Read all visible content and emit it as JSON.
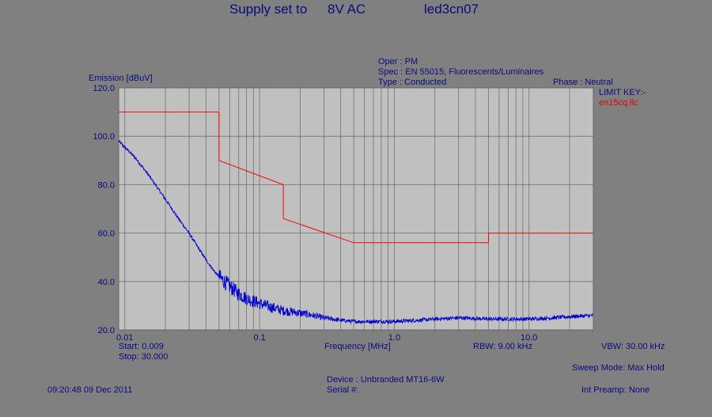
{
  "header": {
    "title": "Supply set to",
    "supply_value": "8V AC",
    "file_id": "led3cn07"
  },
  "info": {
    "oper": "Oper : PM",
    "spec": "Spec : EN 55015, Fluorescents/Luminaires",
    "type": "Type : Conducted",
    "phase": "Phase : Neutral"
  },
  "limit_key": {
    "label": "LIMIT KEY:-",
    "name": "en15cq.llc"
  },
  "footer": {
    "start": "Start: 0.009",
    "stop": "Stop: 30.000",
    "rbw": "RBW: 9.00 kHz",
    "vbw": "VBW: 30.00 kHz",
    "sweep_mode": "Sweep Mode: Max Hold",
    "device": "Device : Unbranded MT16-6W",
    "serial": "Serial #:",
    "timestamp": "09:20:48 09 Dec 2011",
    "int_preamp": "Int Preamp: None"
  },
  "colors": {
    "background": "#808080",
    "plot_area": "#c0c0c0",
    "grid": "#707070",
    "limit_line": "#ff0000",
    "emission_trace": "#0000cc",
    "header_text": "#0a0a80"
  },
  "chart_data": {
    "type": "line",
    "ylabel": "Emission [dBuV]",
    "xlabel": "Frequency [MHz]",
    "x_scale": "log",
    "xlim": [
      0.009,
      30
    ],
    "ylim": [
      20,
      120
    ],
    "grid": true,
    "x_tick_labels": [
      "0.01",
      "0.1",
      "1.0",
      "10.0"
    ],
    "x_ticks": [
      0.01,
      0.1,
      1.0,
      10.0
    ],
    "y_tick_labels": [
      "20.0",
      "40.0",
      "60.0",
      "80.0",
      "100.0",
      "120.0"
    ],
    "y_ticks": [
      20,
      40,
      60,
      80,
      100,
      120
    ],
    "series": [
      {
        "name": "en15cq.llc",
        "color": "#ff0000",
        "x": [
          0.009,
          0.05,
          0.05,
          0.15,
          0.15,
          0.5,
          5.0,
          5.0,
          30.0
        ],
        "y": [
          110,
          110,
          90,
          80,
          66,
          56,
          56,
          60,
          60
        ]
      },
      {
        "color": "#0000cc",
        "noisy": true,
        "x": [
          0.009,
          0.012,
          0.015,
          0.02,
          0.025,
          0.03,
          0.035,
          0.04,
          0.045,
          0.05,
          0.06,
          0.07,
          0.08,
          0.1,
          0.12,
          0.15,
          0.2,
          0.25,
          0.3,
          0.4,
          0.5,
          0.7,
          1.0,
          1.5,
          2.0,
          3.0,
          5.0,
          7.0,
          10.0,
          15.0,
          20.0,
          30.0
        ],
        "y": [
          98,
          91,
          84,
          74,
          66,
          60,
          54,
          49,
          45,
          42,
          38,
          35,
          33,
          31,
          29.5,
          28,
          27,
          26,
          25,
          24,
          23.5,
          23.5,
          23.5,
          24,
          24.5,
          25,
          24.5,
          24.5,
          24.5,
          25,
          25.5,
          26
        ]
      }
    ]
  }
}
